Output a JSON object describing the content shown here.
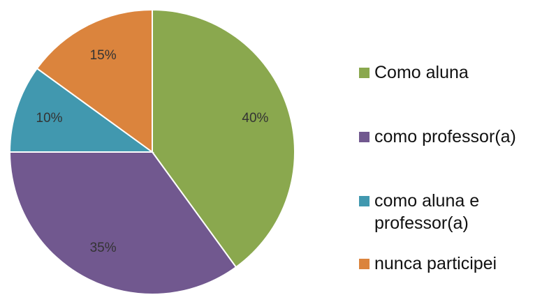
{
  "chart_data": {
    "type": "pie",
    "categories": [
      "Como aluna",
      "como professor(a)",
      "como aluna e professor(a)",
      "nunca participei"
    ],
    "values": [
      40,
      35,
      10,
      15
    ],
    "value_labels": [
      "40%",
      "35%",
      "10%",
      "15%"
    ],
    "colors": [
      "#8aa84e",
      "#71588f",
      "#4198af",
      "#db843d"
    ],
    "legend": "right"
  }
}
